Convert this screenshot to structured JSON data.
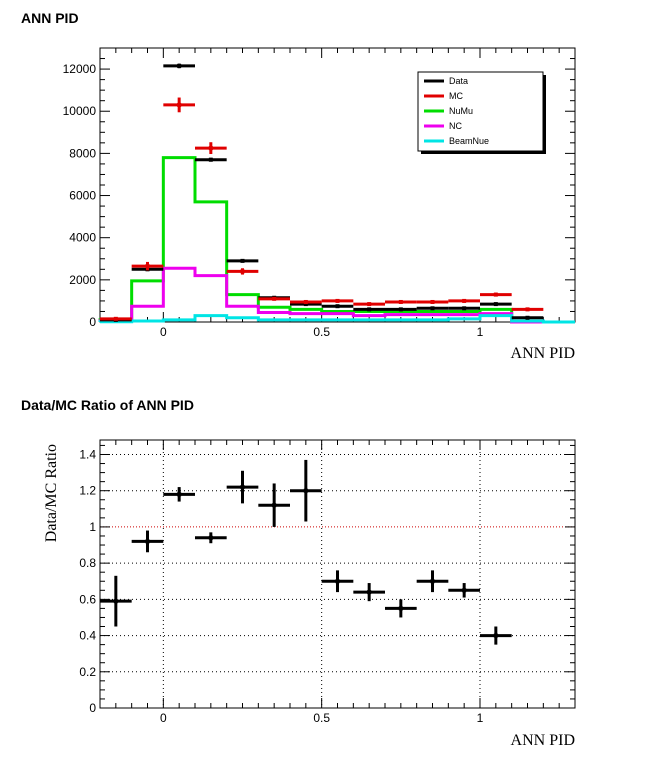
{
  "chart_data": [
    {
      "type": "histogram",
      "title": "ANN PID",
      "xlabel": "ANN PID",
      "ylabel": "",
      "xlim": [
        -0.2,
        1.3
      ],
      "ylim": [
        0,
        13000
      ],
      "x_ticks": [
        "0",
        "0.5",
        "1"
      ],
      "y_ticks": [
        "0",
        "2000",
        "4000",
        "6000",
        "8000",
        "10000",
        "12000"
      ],
      "legend_position": "top-right",
      "bin_edges": [
        -0.2,
        -0.1,
        0.0,
        0.1,
        0.2,
        0.3,
        0.4,
        0.5,
        0.6,
        0.7,
        0.8,
        0.9,
        1.0,
        1.1,
        1.2,
        1.3
      ],
      "series": [
        {
          "name": "Data",
          "style": "points",
          "color": "#000000",
          "values": [
            100,
            2500,
            12150,
            7700,
            2900,
            1150,
            850,
            750,
            600,
            600,
            650,
            650,
            850,
            200,
            0
          ],
          "errors": [
            10,
            50,
            110,
            90,
            55,
            35,
            30,
            28,
            25,
            25,
            25,
            25,
            30,
            15,
            0
          ]
        },
        {
          "name": "MC",
          "style": "points",
          "color": "#e00000",
          "values": [
            150,
            2650,
            10300,
            8250,
            2400,
            1100,
            950,
            1000,
            850,
            950,
            950,
            1000,
            1300,
            600,
            0
          ],
          "errors": [
            30,
            200,
            350,
            280,
            150,
            80,
            70,
            80,
            70,
            75,
            75,
            80,
            90,
            60,
            0
          ]
        },
        {
          "name": "NuMu",
          "style": "step",
          "color": "#00dd00",
          "values": [
            100,
            1950,
            7800,
            5700,
            1300,
            700,
            600,
            500,
            500,
            500,
            500,
            500,
            600,
            0,
            0
          ]
        },
        {
          "name": "NC",
          "style": "step",
          "color": "#ee00ee",
          "values": [
            50,
            750,
            2550,
            2200,
            750,
            450,
            400,
            400,
            300,
            350,
            350,
            350,
            400,
            0,
            0
          ]
        },
        {
          "name": "BeamNue",
          "style": "step",
          "color": "#00e5e5",
          "values": [
            10,
            50,
            100,
            300,
            200,
            100,
            100,
            100,
            100,
            100,
            100,
            150,
            300,
            50,
            0
          ]
        }
      ]
    },
    {
      "type": "scatter",
      "title": "Data/MC Ratio of ANN PID",
      "xlabel": "ANN PID",
      "ylabel": "Data/MC Ratio",
      "xlim": [
        -0.2,
        1.3
      ],
      "ylim": [
        0,
        1.48
      ],
      "x_ticks": [
        "0",
        "0.5",
        "1"
      ],
      "y_ticks": [
        "0",
        "0.2",
        "0.4",
        "0.6",
        "0.8",
        "1",
        "1.2",
        "1.4"
      ],
      "grid": true,
      "reference_line": 1,
      "series": [
        {
          "name": "",
          "color": "#000000",
          "x": [
            -0.15,
            -0.05,
            0.05,
            0.15,
            0.25,
            0.35,
            0.45,
            0.55,
            0.65,
            0.75,
            0.85,
            0.95,
            1.05
          ],
          "x_err": [
            0.05,
            0.05,
            0.05,
            0.05,
            0.05,
            0.05,
            0.05,
            0.05,
            0.05,
            0.05,
            0.05,
            0.05,
            0.05
          ],
          "y": [
            0.59,
            0.92,
            1.18,
            0.94,
            1.22,
            1.12,
            1.2,
            0.7,
            0.64,
            0.55,
            0.7,
            0.65,
            0.4
          ],
          "y_err": [
            0.14,
            0.06,
            0.04,
            0.03,
            0.09,
            0.12,
            0.17,
            0.06,
            0.05,
            0.05,
            0.06,
            0.04,
            0.05
          ]
        }
      ]
    }
  ]
}
